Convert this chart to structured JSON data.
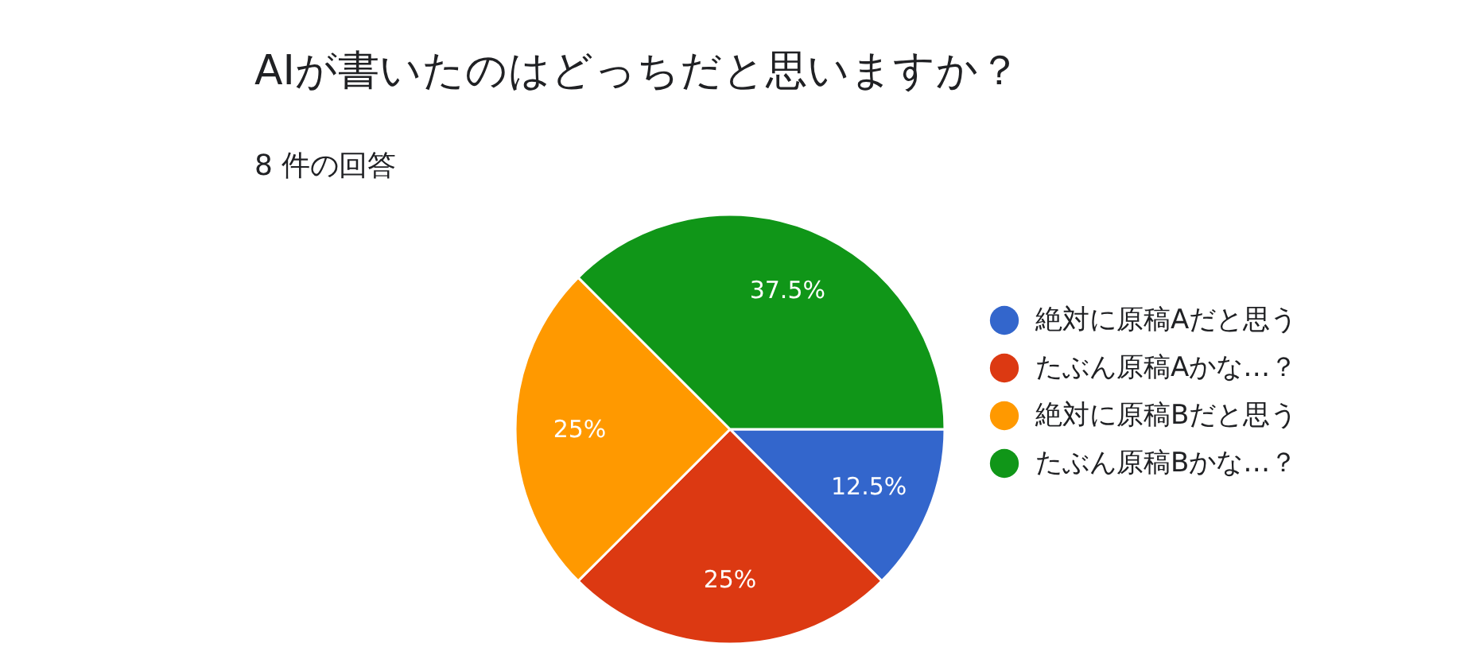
{
  "chart_data": {
    "type": "pie",
    "title": "AIが書いたのはどっちだと思いますか？",
    "subtitle": "8 件の回答",
    "categories": [
      "絶対に原稿Aだと思う",
      "たぶん原稿Aかな…？",
      "絶対に原稿Bだと思う",
      "たぶん原稿Bかな…？"
    ],
    "values": [
      12.5,
      25,
      25,
      37.5
    ],
    "colors": [
      "#3366cc",
      "#dc3912",
      "#ff9900",
      "#109618"
    ],
    "value_labels": [
      "12.5%",
      "25%",
      "25%",
      "37.5%"
    ],
    "legend": "right"
  }
}
